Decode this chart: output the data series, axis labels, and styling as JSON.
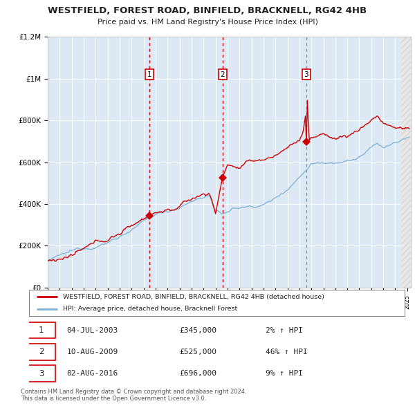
{
  "title1": "WESTFIELD, FOREST ROAD, BINFIELD, BRACKNELL, RG42 4HB",
  "title2": "Price paid vs. HM Land Registry's House Price Index (HPI)",
  "legend_line1": "WESTFIELD, FOREST ROAD, BINFIELD, BRACKNELL, RG42 4HB (detached house)",
  "legend_line2": "HPI: Average price, detached house, Bracknell Forest",
  "transactions": [
    {
      "num": 1,
      "date": "04-JUL-2003",
      "price": 345000,
      "price_str": "£345,000",
      "pct": "2%",
      "dir": "↑"
    },
    {
      "num": 2,
      "date": "10-AUG-2009",
      "price": 525000,
      "price_str": "£525,000",
      "pct": "46%",
      "dir": "↑"
    },
    {
      "num": 3,
      "date": "02-AUG-2016",
      "price": 696000,
      "price_str": "£696,000",
      "pct": "9%",
      "dir": "↑"
    }
  ],
  "footnote1": "Contains HM Land Registry data © Crown copyright and database right 2024.",
  "footnote2": "This data is licensed under the Open Government Licence v3.0.",
  "hpi_color": "#7bafd4",
  "price_color": "#cc0000",
  "bg_color": "#dce9f5",
  "grid_color": "#ffffff",
  "ylim": [
    0,
    1200000
  ],
  "xlim_start": 1995.0,
  "xlim_end": 2025.3,
  "transaction_dates_decimal": [
    2003.5,
    2009.6,
    2016.58
  ],
  "transaction_prices": [
    345000,
    525000,
    696000
  ],
  "vline3_color": "#8888aa",
  "ytick_labels": [
    "£0",
    "£200K",
    "£400K",
    "£600K",
    "£800K",
    "£1M",
    "£1.2M"
  ],
  "ytick_values": [
    0,
    200000,
    400000,
    600000,
    800000,
    1000000,
    1200000
  ]
}
